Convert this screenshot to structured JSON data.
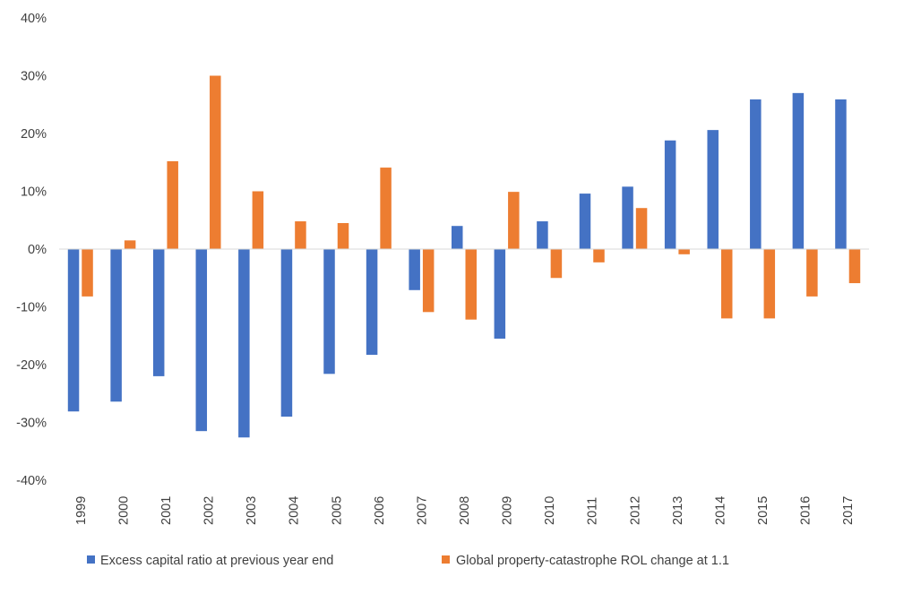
{
  "chart_data": {
    "type": "bar",
    "title": "",
    "xlabel": "",
    "ylabel": "",
    "ylim": [
      -40,
      40
    ],
    "yticks": [
      "40%",
      "30%",
      "20%",
      "10%",
      "0%",
      "-10%",
      "-20%",
      "-30%",
      "-40%"
    ],
    "ytick_values": [
      40,
      30,
      20,
      10,
      0,
      -10,
      -20,
      -30,
      -40
    ],
    "grid": false,
    "legend_position": "bottom",
    "categories": [
      "1999",
      "2000",
      "2001",
      "2002",
      "2003",
      "2004",
      "2005",
      "2006",
      "2007",
      "2008",
      "2009",
      "2010",
      "2011",
      "2012",
      "2013",
      "2014",
      "2015",
      "2016",
      "2017"
    ],
    "series": [
      {
        "name": "Excess capital ratio at previous year end",
        "color": "#4472C4",
        "values": [
          -28.1,
          -26.4,
          -22.0,
          -31.5,
          -32.6,
          -29.0,
          -21.6,
          -18.3,
          -7.1,
          4.0,
          -15.5,
          4.8,
          9.6,
          10.8,
          18.8,
          20.6,
          25.9,
          27.0,
          25.9
        ]
      },
      {
        "name": "Global property-catastrophe ROL change at 1.1",
        "color": "#ED7D31",
        "values": [
          -8.2,
          1.5,
          15.2,
          30.0,
          10.0,
          4.8,
          4.5,
          14.1,
          -10.9,
          -12.2,
          9.9,
          -5.0,
          -2.3,
          7.1,
          -0.9,
          -12.0,
          -12.0,
          -8.2,
          -5.9
        ]
      }
    ]
  }
}
